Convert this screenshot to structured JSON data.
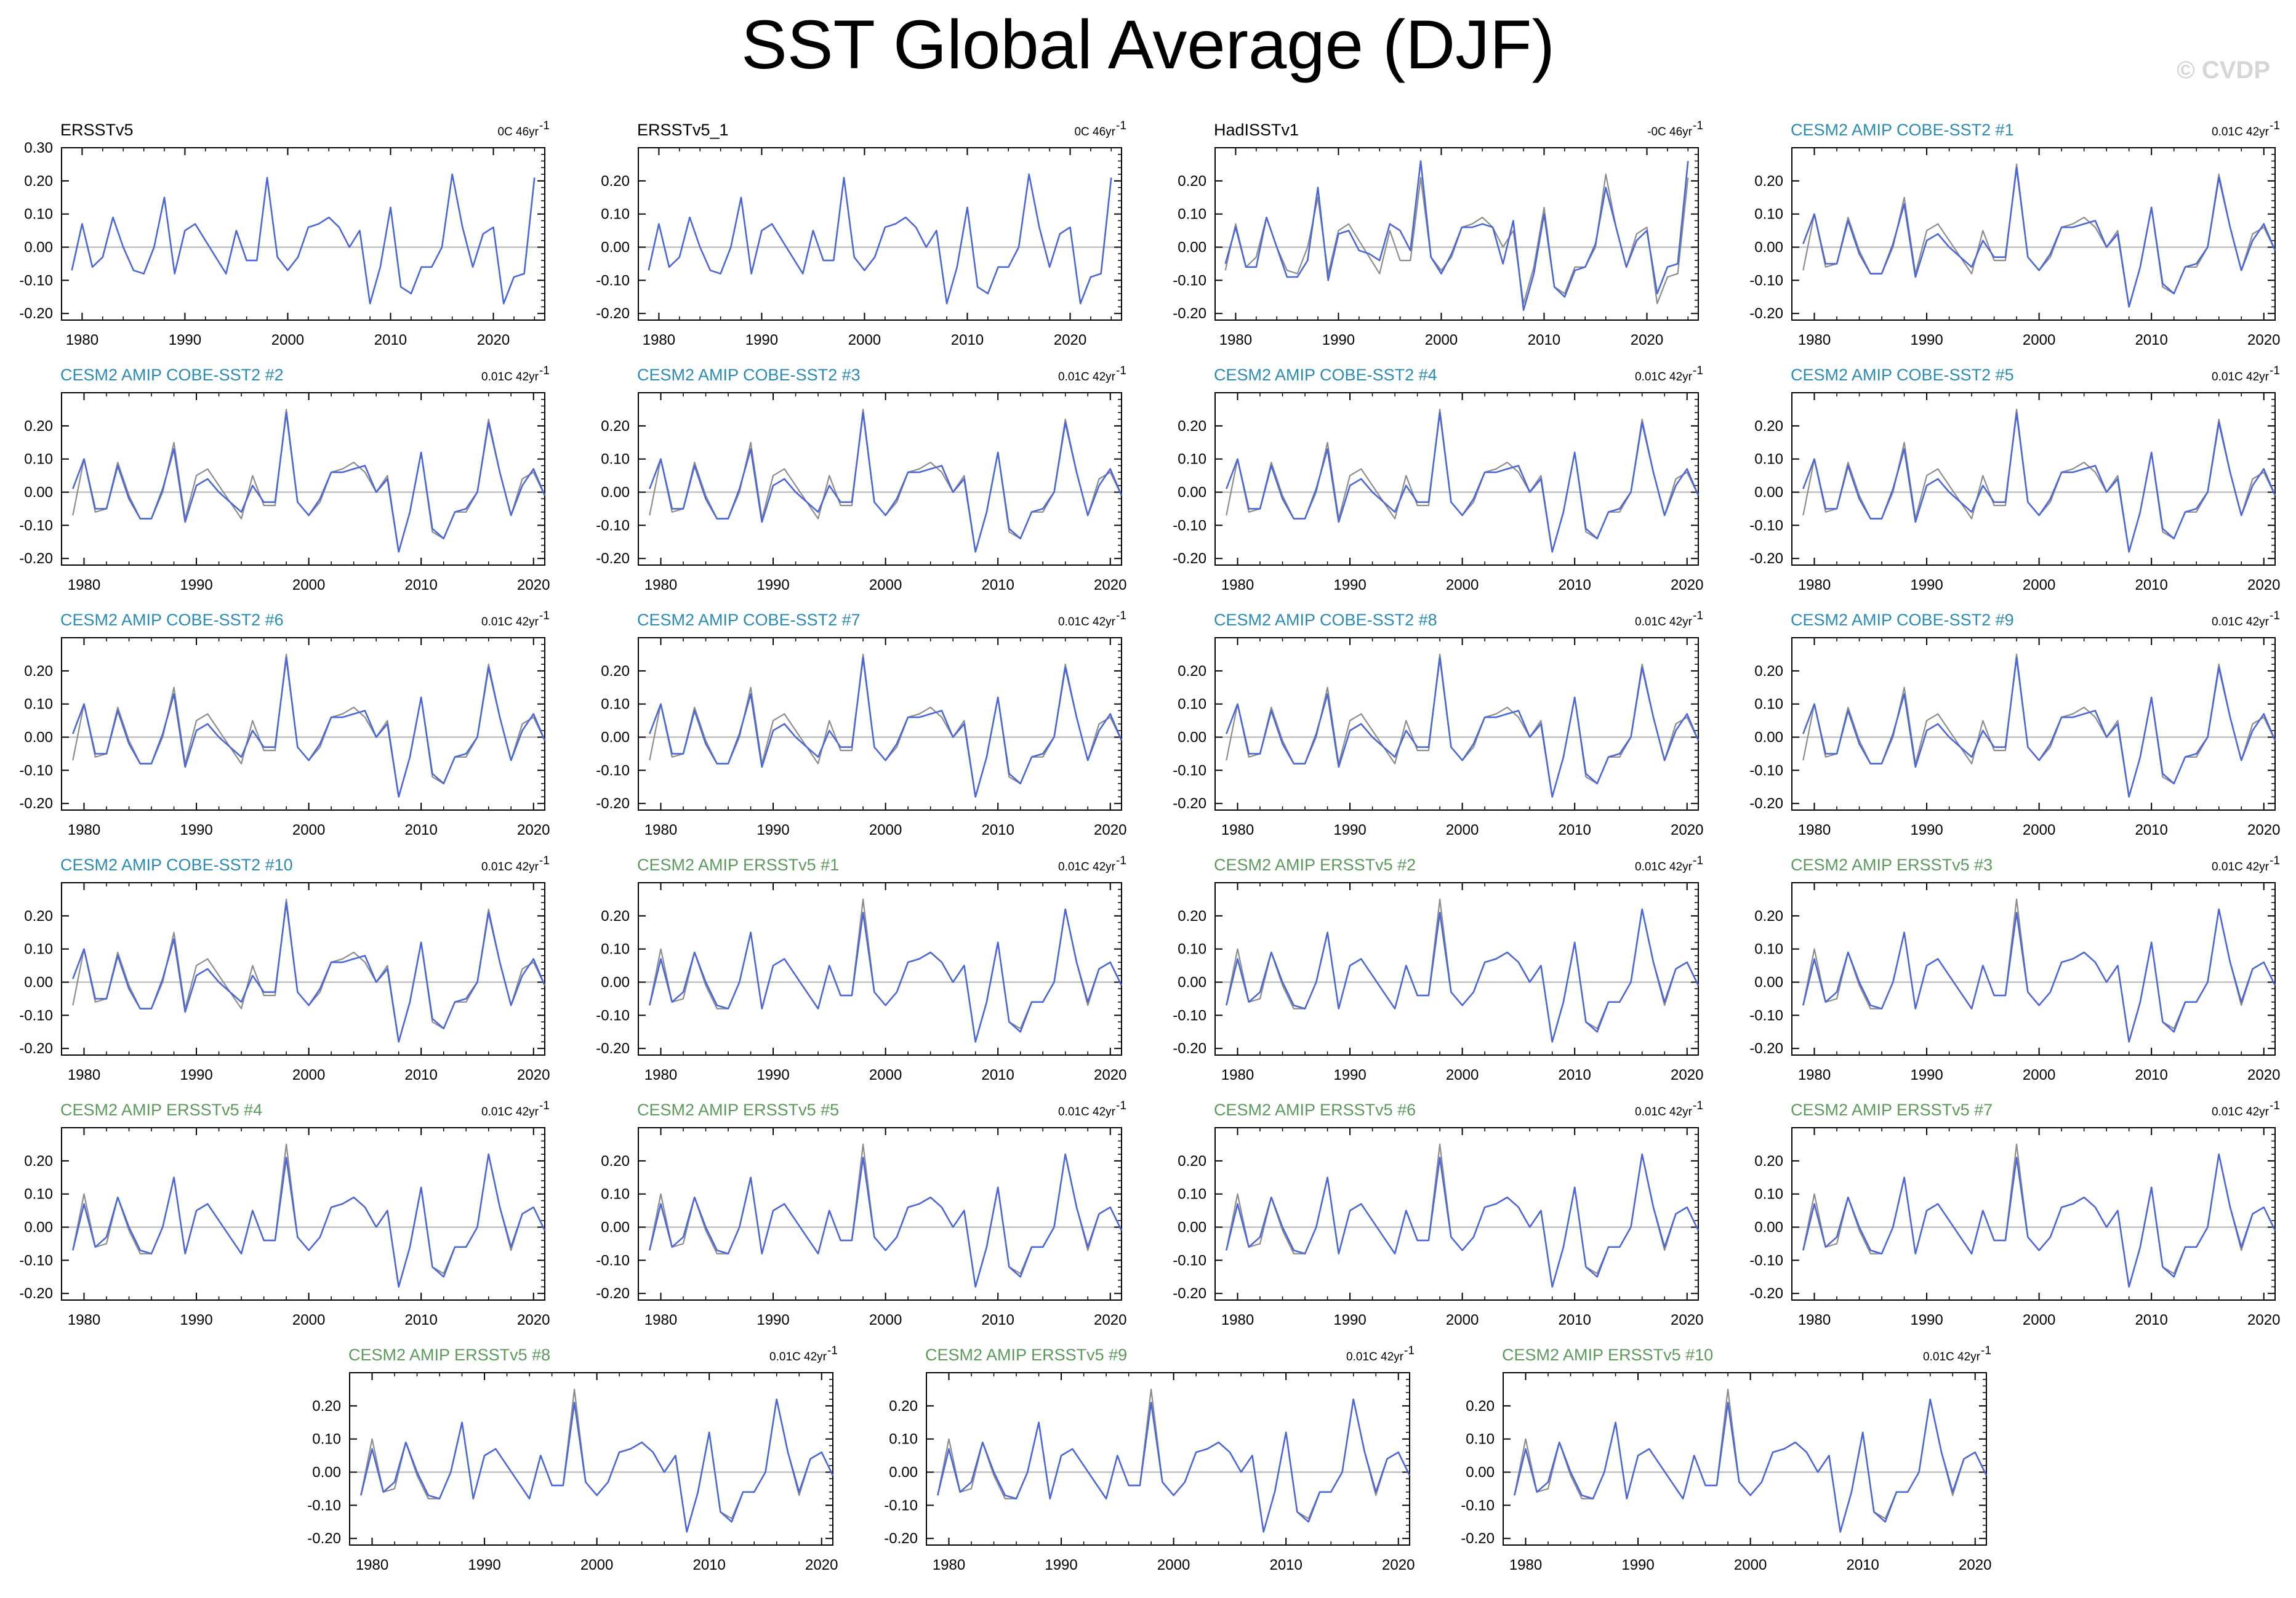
{
  "title": "SST Global Average (DJF)",
  "watermark": "© CVDP",
  "colors": {
    "model_line": "#4b66d6",
    "obs_line": "#8c8c8c",
    "zero_line": "#b3b3b3",
    "obs_title": "#000000",
    "cobe_title": "#2a8bb5",
    "ersst_title": "#5c9a5c"
  },
  "chart_data": {
    "type": "line",
    "observed_series": {
      "name": "ERSSTv5",
      "x": [
        1979,
        1980,
        1981,
        1982,
        1983,
        1984,
        1985,
        1986,
        1987,
        1988,
        1989,
        1990,
        1991,
        1992,
        1993,
        1994,
        1995,
        1996,
        1997,
        1998,
        1999,
        2000,
        2001,
        2002,
        2003,
        2004,
        2005,
        2006,
        2007,
        2008,
        2009,
        2010,
        2011,
        2012,
        2013,
        2014,
        2015,
        2016,
        2017,
        2018,
        2019,
        2020,
        2021,
        2022,
        2023,
        2024
      ],
      "y": [
        -0.07,
        0.07,
        -0.06,
        -0.03,
        0.09,
        0.0,
        -0.07,
        -0.08,
        0.0,
        0.15,
        -0.08,
        0.05,
        0.07,
        0.02,
        -0.03,
        -0.08,
        0.05,
        -0.04,
        -0.04,
        0.21,
        -0.03,
        -0.07,
        -0.03,
        0.06,
        0.07,
        0.09,
        0.06,
        0.0,
        0.05,
        -0.17,
        -0.06,
        0.12,
        -0.12,
        -0.14,
        -0.06,
        -0.06,
        0.0,
        0.22,
        0.06,
        -0.06,
        0.04,
        0.06,
        -0.17,
        -0.09,
        -0.08,
        0.21
      ]
    },
    "hadisst_series": {
      "name": "HadISSTv1",
      "x": [
        1979,
        1980,
        1981,
        1982,
        1983,
        1984,
        1985,
        1986,
        1987,
        1988,
        1989,
        1990,
        1991,
        1992,
        1993,
        1994,
        1995,
        1996,
        1997,
        1998,
        1999,
        2000,
        2001,
        2002,
        2003,
        2004,
        2005,
        2006,
        2007,
        2008,
        2009,
        2010,
        2011,
        2012,
        2013,
        2014,
        2015,
        2016,
        2017,
        2018,
        2019,
        2020,
        2021,
        2022,
        2023,
        2024
      ],
      "y": [
        -0.05,
        0.06,
        -0.06,
        -0.06,
        0.09,
        0.0,
        -0.09,
        -0.09,
        -0.04,
        0.18,
        -0.1,
        0.04,
        0.05,
        -0.01,
        -0.02,
        -0.04,
        0.07,
        0.05,
        -0.01,
        0.26,
        -0.03,
        -0.08,
        -0.02,
        0.06,
        0.06,
        0.07,
        0.06,
        -0.05,
        0.08,
        -0.19,
        -0.08,
        0.1,
        -0.12,
        -0.15,
        -0.07,
        -0.06,
        0.01,
        0.18,
        0.06,
        -0.06,
        0.02,
        0.05,
        -0.14,
        -0.06,
        -0.05,
        0.26
      ]
    },
    "amip_obs_series": {
      "x": [
        1979,
        1980,
        1981,
        1982,
        1983,
        1984,
        1985,
        1986,
        1987,
        1988,
        1989,
        1990,
        1991,
        1992,
        1993,
        1994,
        1995,
        1996,
        1997,
        1998,
        1999,
        2000,
        2001,
        2002,
        2003,
        2004,
        2005,
        2006,
        2007,
        2008,
        2009,
        2010,
        2011,
        2012,
        2013,
        2014,
        2015,
        2016,
        2017,
        2018,
        2019,
        2020,
        2021
      ],
      "y": [
        -0.07,
        0.1,
        -0.06,
        -0.05,
        0.09,
        -0.01,
        -0.08,
        -0.08,
        0.0,
        0.15,
        -0.08,
        0.05,
        0.07,
        0.02,
        -0.03,
        -0.08,
        0.05,
        -0.04,
        -0.04,
        0.25,
        -0.03,
        -0.07,
        -0.03,
        0.06,
        0.07,
        0.09,
        0.06,
        0.0,
        0.05,
        -0.18,
        -0.06,
        0.12,
        -0.12,
        -0.14,
        -0.06,
        -0.06,
        0.0,
        0.22,
        0.06,
        -0.07,
        0.04,
        0.06,
        -0.01
      ]
    },
    "cobe_series": {
      "x": [
        1979,
        1980,
        1981,
        1982,
        1983,
        1984,
        1985,
        1986,
        1987,
        1988,
        1989,
        1990,
        1991,
        1992,
        1993,
        1994,
        1995,
        1996,
        1997,
        1998,
        1999,
        2000,
        2001,
        2002,
        2003,
        2004,
        2005,
        2006,
        2007,
        2008,
        2009,
        2010,
        2011,
        2012,
        2013,
        2014,
        2015,
        2016,
        2017,
        2018,
        2019,
        2020,
        2021
      ],
      "y": [
        0.01,
        0.1,
        -0.05,
        -0.05,
        0.08,
        -0.02,
        -0.08,
        -0.08,
        0.01,
        0.13,
        -0.09,
        0.02,
        0.04,
        0.0,
        -0.03,
        -0.06,
        0.02,
        -0.03,
        -0.03,
        0.24,
        -0.03,
        -0.07,
        -0.02,
        0.06,
        0.06,
        0.07,
        0.08,
        0.0,
        0.04,
        -0.18,
        -0.06,
        0.12,
        -0.11,
        -0.14,
        -0.06,
        -0.05,
        0.0,
        0.21,
        0.06,
        -0.07,
        0.02,
        0.07,
        -0.01
      ]
    },
    "ersst_series": {
      "x": [
        1979,
        1980,
        1981,
        1982,
        1983,
        1984,
        1985,
        1986,
        1987,
        1988,
        1989,
        1990,
        1991,
        1992,
        1993,
        1994,
        1995,
        1996,
        1997,
        1998,
        1999,
        2000,
        2001,
        2002,
        2003,
        2004,
        2005,
        2006,
        2007,
        2008,
        2009,
        2010,
        2011,
        2012,
        2013,
        2014,
        2015,
        2016,
        2017,
        2018,
        2019,
        2020,
        2021
      ],
      "y": [
        -0.07,
        0.07,
        -0.06,
        -0.03,
        0.09,
        0.0,
        -0.07,
        -0.08,
        0.0,
        0.15,
        -0.08,
        0.05,
        0.07,
        0.02,
        -0.03,
        -0.08,
        0.05,
        -0.04,
        -0.04,
        0.21,
        -0.03,
        -0.07,
        -0.03,
        0.06,
        0.07,
        0.09,
        0.06,
        0.0,
        0.05,
        -0.18,
        -0.06,
        0.12,
        -0.12,
        -0.15,
        -0.06,
        -0.06,
        0.0,
        0.22,
        0.06,
        -0.06,
        0.04,
        0.06,
        -0.01
      ]
    },
    "ylim": [
      -0.22,
      0.3
    ],
    "xticks": [
      1980,
      1990,
      2000,
      2010,
      2020
    ],
    "panels": [
      {
        "title": "ERSSTv5",
        "trend": "0C 46yr",
        "group": "obs",
        "xlim": [
          1978,
          2025
        ],
        "yticks": [
          "0.30",
          "0.20",
          "0.10",
          "0.00",
          "-0.10",
          "-0.20"
        ]
      },
      {
        "title": "ERSSTv5_1",
        "trend": "0C 46yr",
        "group": "obs",
        "xlim": [
          1978,
          2025
        ],
        "yticks": [
          "0.20",
          "0.10",
          "0.00",
          "-0.10",
          "-0.20"
        ]
      },
      {
        "title": "HadISSTv1",
        "trend": "-0C 46yr",
        "group": "had",
        "xlim": [
          1978,
          2025
        ],
        "yticks": [
          "0.20",
          "0.10",
          "0.00",
          "-0.10",
          "-0.20"
        ]
      },
      {
        "title": "CESM2 AMIP COBE-SST2 #1",
        "trend": "0.01C 42yr",
        "group": "cobe",
        "xlim": [
          1978,
          2021
        ],
        "yticks": [
          "0.20",
          "0.10",
          "0.00",
          "-0.10",
          "-0.20"
        ]
      },
      {
        "title": "CESM2 AMIP COBE-SST2 #2",
        "trend": "0.01C 42yr",
        "group": "cobe",
        "xlim": [
          1978,
          2021
        ],
        "yticks": [
          "0.20",
          "0.10",
          "0.00",
          "-0.10",
          "-0.20"
        ]
      },
      {
        "title": "CESM2 AMIP COBE-SST2 #3",
        "trend": "0.01C 42yr",
        "group": "cobe",
        "xlim": [
          1978,
          2021
        ],
        "yticks": [
          "0.20",
          "0.10",
          "0.00",
          "-0.10",
          "-0.20"
        ]
      },
      {
        "title": "CESM2 AMIP COBE-SST2 #4",
        "trend": "0.01C 42yr",
        "group": "cobe",
        "xlim": [
          1978,
          2021
        ],
        "yticks": [
          "0.20",
          "0.10",
          "0.00",
          "-0.10",
          "-0.20"
        ]
      },
      {
        "title": "CESM2 AMIP COBE-SST2 #5",
        "trend": "0.01C 42yr",
        "group": "cobe",
        "xlim": [
          1978,
          2021
        ],
        "yticks": [
          "0.20",
          "0.10",
          "0.00",
          "-0.10",
          "-0.20"
        ]
      },
      {
        "title": "CESM2 AMIP COBE-SST2 #6",
        "trend": "0.01C 42yr",
        "group": "cobe",
        "xlim": [
          1978,
          2021
        ],
        "yticks": [
          "0.20",
          "0.10",
          "0.00",
          "-0.10",
          "-0.20"
        ]
      },
      {
        "title": "CESM2 AMIP COBE-SST2 #7",
        "trend": "0.01C 42yr",
        "group": "cobe",
        "xlim": [
          1978,
          2021
        ],
        "yticks": [
          "0.20",
          "0.10",
          "0.00",
          "-0.10",
          "-0.20"
        ]
      },
      {
        "title": "CESM2 AMIP COBE-SST2 #8",
        "trend": "0.01C 42yr",
        "group": "cobe",
        "xlim": [
          1978,
          2021
        ],
        "yticks": [
          "0.20",
          "0.10",
          "0.00",
          "-0.10",
          "-0.20"
        ]
      },
      {
        "title": "CESM2 AMIP COBE-SST2 #9",
        "trend": "0.01C 42yr",
        "group": "cobe",
        "xlim": [
          1978,
          2021
        ],
        "yticks": [
          "0.20",
          "0.10",
          "0.00",
          "-0.10",
          "-0.20"
        ]
      },
      {
        "title": "CESM2 AMIP COBE-SST2 #10",
        "trend": "0.01C 42yr",
        "group": "cobe",
        "xlim": [
          1978,
          2021
        ],
        "yticks": [
          "0.20",
          "0.10",
          "0.00",
          "-0.10",
          "-0.20"
        ]
      },
      {
        "title": "CESM2 AMIP ERSSTv5 #1",
        "trend": "0.01C 42yr",
        "group": "ersst",
        "xlim": [
          1978,
          2021
        ],
        "yticks": [
          "0.20",
          "0.10",
          "0.00",
          "-0.10",
          "-0.20"
        ]
      },
      {
        "title": "CESM2 AMIP ERSSTv5 #2",
        "trend": "0.01C 42yr",
        "group": "ersst",
        "xlim": [
          1978,
          2021
        ],
        "yticks": [
          "0.20",
          "0.10",
          "0.00",
          "-0.10",
          "-0.20"
        ]
      },
      {
        "title": "CESM2 AMIP ERSSTv5 #3",
        "trend": "0.01C 42yr",
        "group": "ersst",
        "xlim": [
          1978,
          2021
        ],
        "yticks": [
          "0.20",
          "0.10",
          "0.00",
          "-0.10",
          "-0.20"
        ]
      },
      {
        "title": "CESM2 AMIP ERSSTv5 #4",
        "trend": "0.01C 42yr",
        "group": "ersst",
        "xlim": [
          1978,
          2021
        ],
        "yticks": [
          "0.20",
          "0.10",
          "0.00",
          "-0.10",
          "-0.20"
        ]
      },
      {
        "title": "CESM2 AMIP ERSSTv5 #5",
        "trend": "0.01C 42yr",
        "group": "ersst",
        "xlim": [
          1978,
          2021
        ],
        "yticks": [
          "0.20",
          "0.10",
          "0.00",
          "-0.10",
          "-0.20"
        ]
      },
      {
        "title": "CESM2 AMIP ERSSTv5 #6",
        "trend": "0.01C 42yr",
        "group": "ersst",
        "xlim": [
          1978,
          2021
        ],
        "yticks": [
          "0.20",
          "0.10",
          "0.00",
          "-0.10",
          "-0.20"
        ]
      },
      {
        "title": "CESM2 AMIP ERSSTv5 #7",
        "trend": "0.01C 42yr",
        "group": "ersst",
        "xlim": [
          1978,
          2021
        ],
        "yticks": [
          "0.20",
          "0.10",
          "0.00",
          "-0.10",
          "-0.20"
        ]
      },
      {
        "title": "CESM2 AMIP ERSSTv5 #8",
        "trend": "0.01C 42yr",
        "group": "ersst",
        "xlim": [
          1978,
          2021
        ],
        "yticks": [
          "0.20",
          "0.10",
          "0.00",
          "-0.10",
          "-0.20"
        ]
      },
      {
        "title": "CESM2 AMIP ERSSTv5 #9",
        "trend": "0.01C 42yr",
        "group": "ersst",
        "xlim": [
          1978,
          2021
        ],
        "yticks": [
          "0.20",
          "0.10",
          "0.00",
          "-0.10",
          "-0.20"
        ]
      },
      {
        "title": "CESM2 AMIP ERSSTv5 #10",
        "trend": "0.01C 42yr",
        "group": "ersst",
        "xlim": [
          1978,
          2021
        ],
        "yticks": [
          "0.20",
          "0.10",
          "0.00",
          "-0.10",
          "-0.20"
        ]
      }
    ]
  }
}
